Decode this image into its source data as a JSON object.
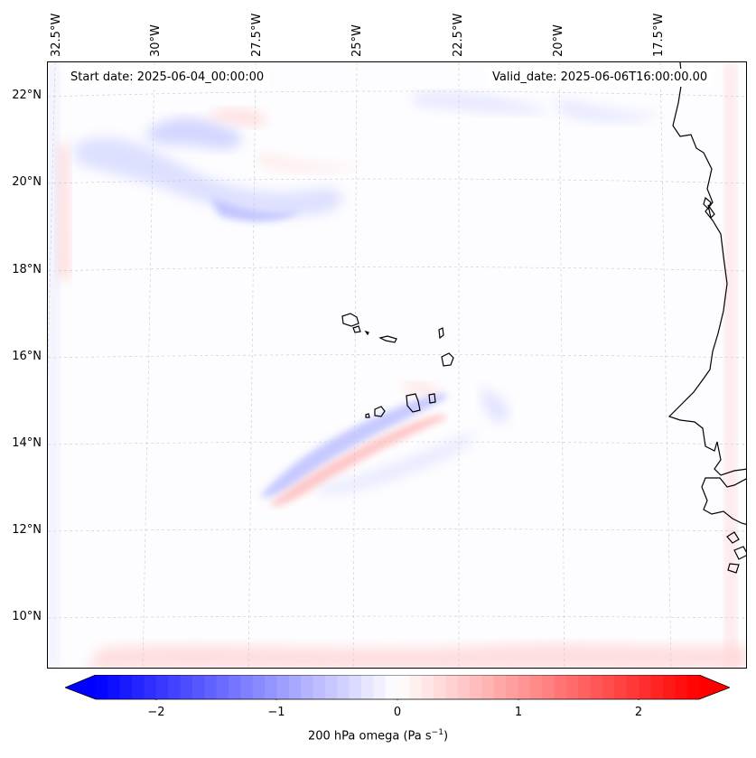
{
  "annotations": {
    "start_date": "Start date: 2025-06-04_00:00:00",
    "valid_date": "Valid_date: 2025-06-06T16:00:00.00"
  },
  "longitude_labels": [
    "32.5°W",
    "30°W",
    "27.5°W",
    "25°W",
    "22.5°W",
    "20°W",
    "17.5°W"
  ],
  "latitude_labels": [
    "22°N",
    "20°N",
    "18°N",
    "16°N",
    "14°N",
    "12°N",
    "10°N"
  ],
  "colorbar": {
    "ticks": [
      "−2",
      "−1",
      "0",
      "1",
      "2"
    ],
    "label": "200 hPa omega (Pa s",
    "label_superscript": "−1",
    "label_close": ")",
    "range": [
      -2.6,
      2.6
    ],
    "colormap": "bwr"
  },
  "field": {
    "variable": "200 hPa omega",
    "units": "Pa s-1"
  },
  "colors": {
    "negative": "#0000ff",
    "zero": "#ffffff",
    "positive": "#ff0000",
    "coastline": "#000000",
    "gridline": "#c8c8c8"
  }
}
